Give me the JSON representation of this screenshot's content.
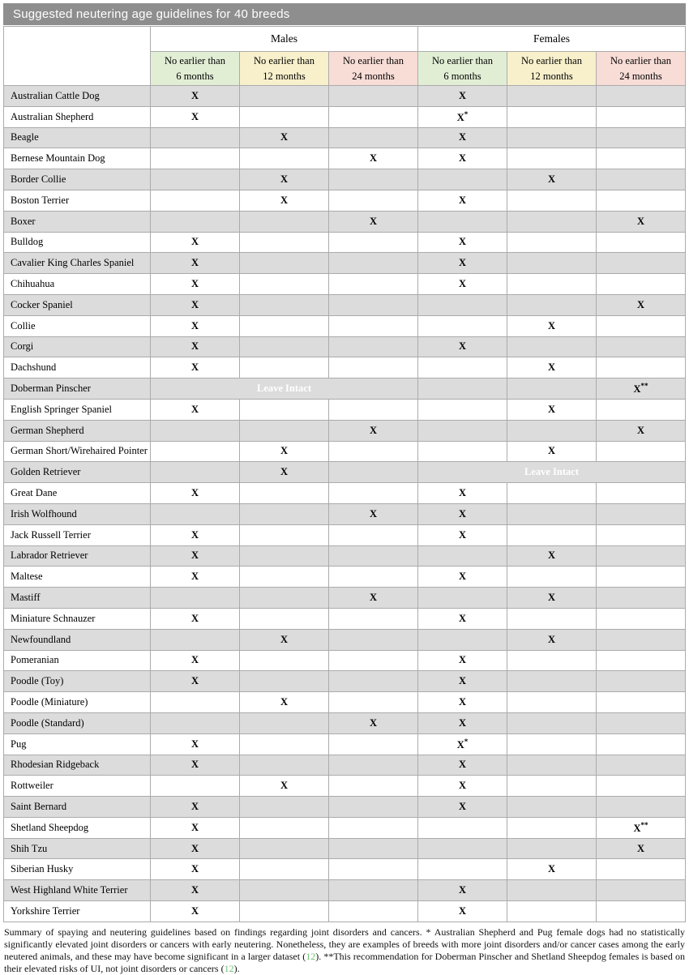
{
  "title": "Suggested neutering age guidelines for 40 breeds",
  "header": {
    "groups": [
      "Males",
      "Females"
    ],
    "no_earlier_than": "No earlier than",
    "subcols": [
      "6 months",
      "12 months",
      "24 months"
    ]
  },
  "leave_intact_label": "Leave Intact",
  "colors": {
    "title_bar": "#8e8e8e",
    "grid_border": "#ababab",
    "row_gray": "#dcdcdc",
    "strong_green": "#7fbb54",
    "light_green": "#e5f1db",
    "strong_yellow": "#fbd939",
    "light_yellow": "#faf3d2",
    "orange": "#f5a169",
    "light_pink": "#fadfd9",
    "red": "#fe0000",
    "hdr_green": "#e1eed4",
    "hdr_yellow": "#f8f0cb",
    "hdr_pink": "#f8dcd6",
    "link_green": "#6fbf73"
  },
  "rows": [
    {
      "breed": "Australian Cattle Dog",
      "cells": [
        "G:X",
        "",
        "",
        "G:X",
        "",
        ""
      ]
    },
    {
      "breed": "Australian Shepherd",
      "cells": [
        "g:X",
        "",
        "",
        "g:X*",
        "",
        ""
      ]
    },
    {
      "breed": "Beagle",
      "cells": [
        "",
        "Y:X",
        "",
        "G:X",
        "",
        ""
      ]
    },
    {
      "breed": "Bernese Mountain Dog",
      "cells": [
        "",
        "",
        "p:X",
        "g:X",
        "",
        ""
      ]
    },
    {
      "breed": "Border Collie",
      "cells": [
        "",
        "Y:X",
        "",
        "",
        "Y:X",
        ""
      ]
    },
    {
      "breed": "Boston Terrier",
      "cells": [
        "",
        "y:X",
        "",
        "g:X",
        "",
        ""
      ]
    },
    {
      "breed": "Boxer",
      "cells": [
        "",
        "",
        "O:X",
        "",
        "",
        "O:X"
      ]
    },
    {
      "breed": "Bulldog",
      "cells": [
        "g:X",
        "",
        "",
        "g:X",
        "",
        ""
      ]
    },
    {
      "breed": "Cavalier King Charles Spaniel",
      "cells": [
        "G:X",
        "",
        "",
        "G:X",
        "",
        ""
      ]
    },
    {
      "breed": "Chihuahua",
      "cells": [
        "g:X",
        "",
        "",
        "g:X",
        "",
        ""
      ]
    },
    {
      "breed": "Cocker Spaniel",
      "cells": [
        "G:X",
        "",
        "",
        "",
        "",
        "O:X"
      ]
    },
    {
      "breed": "Collie",
      "cells": [
        "g:X",
        "",
        "",
        "",
        "y:X",
        ""
      ]
    },
    {
      "breed": "Corgi",
      "cells": [
        "G:X",
        "",
        "",
        "G:X",
        "",
        ""
      ]
    },
    {
      "breed": "Dachshund",
      "cells": [
        "g:X",
        "",
        "",
        "",
        "y:X",
        ""
      ]
    },
    {
      "breed": "Doberman Pinscher",
      "li": "males",
      "cells": [
        "",
        "",
        "",
        "",
        "",
        "O:X**"
      ]
    },
    {
      "breed": "English Springer Spaniel",
      "cells": [
        "g:X",
        "",
        "",
        "",
        "y:X",
        ""
      ]
    },
    {
      "breed": "German Shepherd",
      "cells": [
        "",
        "",
        "O:X",
        "",
        "",
        "O:X"
      ]
    },
    {
      "breed": "German Short/Wirehaired Pointer",
      "cells": [
        "",
        "y:X",
        "",
        "",
        "y:X",
        ""
      ]
    },
    {
      "breed": "Golden Retriever",
      "li": "females",
      "cells": [
        "",
        "Y:X",
        "",
        "",
        "",
        ""
      ]
    },
    {
      "breed": "Great Dane",
      "cells": [
        "g:X",
        "",
        "",
        "g:X",
        "",
        ""
      ]
    },
    {
      "breed": "Irish Wolfhound",
      "cells": [
        "",
        "",
        "O:X",
        "G:X",
        "",
        ""
      ]
    },
    {
      "breed": "Jack Russell Terrier",
      "cells": [
        "g:X",
        "",
        "",
        "g:X",
        "",
        ""
      ]
    },
    {
      "breed": "Labrador Retriever",
      "cells": [
        "G:X",
        "",
        "",
        "",
        "Y:X",
        ""
      ]
    },
    {
      "breed": "Maltese",
      "cells": [
        "g:X",
        "",
        "",
        "g:X",
        "",
        ""
      ]
    },
    {
      "breed": "Mastiff",
      "cells": [
        "",
        "",
        "O:X",
        "",
        "Y:X",
        ""
      ]
    },
    {
      "breed": "Miniature Schnauzer",
      "cells": [
        "g:X",
        "",
        "",
        "g:X",
        "",
        ""
      ]
    },
    {
      "breed": "Newfoundland",
      "cells": [
        "",
        "Y:X",
        "",
        "",
        "Y:X",
        ""
      ]
    },
    {
      "breed": "Pomeranian",
      "cells": [
        "g:X",
        "",
        "",
        "g:X",
        "",
        ""
      ]
    },
    {
      "breed": "Poodle (Toy)",
      "cells": [
        "G:X",
        "",
        "",
        "G:X",
        "",
        ""
      ]
    },
    {
      "breed": "Poodle (Miniature)",
      "cells": [
        "",
        "y:X",
        "",
        "g:X",
        "",
        ""
      ]
    },
    {
      "breed": "Poodle (Standard)",
      "cells": [
        "",
        "",
        "O:X",
        "G:X",
        "",
        ""
      ]
    },
    {
      "breed": "Pug",
      "cells": [
        "g:X",
        "",
        "",
        "g:X*",
        "",
        ""
      ]
    },
    {
      "breed": "Rhodesian Ridgeback",
      "cells": [
        "G:X",
        "",
        "",
        "G:X",
        "",
        ""
      ]
    },
    {
      "breed": "Rottweiler",
      "cells": [
        "",
        "y:X",
        "",
        "g:X",
        "",
        ""
      ]
    },
    {
      "breed": "Saint Bernard",
      "cells": [
        "G:X",
        "",
        "",
        "G:X",
        "",
        ""
      ]
    },
    {
      "breed": "Shetland Sheepdog",
      "cells": [
        "g:X",
        "",
        "",
        "",
        "",
        "p:X**"
      ]
    },
    {
      "breed": "Shih Tzu",
      "cells": [
        "G:X",
        "",
        "",
        "",
        "",
        "O:X"
      ]
    },
    {
      "breed": "Siberian Husky",
      "cells": [
        "g:X",
        "",
        "",
        "",
        "y:X",
        ""
      ]
    },
    {
      "breed": "West Highland White Terrier",
      "cells": [
        "G:X",
        "",
        "",
        "G:X",
        "",
        ""
      ]
    },
    {
      "breed": "Yorkshire Terrier",
      "cells": [
        "g:X",
        "",
        "",
        "g:X",
        "",
        ""
      ]
    }
  ],
  "footer": {
    "part1": "Summary of spaying and neutering guidelines based on findings regarding joint disorders and cancers. * Australian Shepherd and Pug female dogs had no statistically significantly elevated joint disorders or cancers with early neutering. Nonetheless, they are examples of breeds with more joint disorders and/or cancer cases among the early neutered animals, and these may have become significant in a larger dataset (",
    "ref1": "12",
    "part2": "). **This recommendation for Doberman Pinscher and Shetland Sheepdog females is based on their elevated risks of UI, not joint disorders or cancers (",
    "ref2": "12",
    "part3": ")."
  }
}
